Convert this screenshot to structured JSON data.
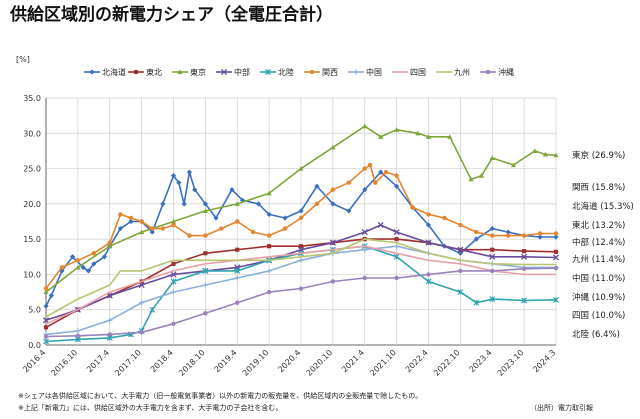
{
  "chart_data": {
    "type": "line",
    "title": "供給区域別の新電力シェア（全電圧合計）",
    "ylabel": "[%]",
    "ylim": [
      0,
      35
    ],
    "yticks": [
      "0.0",
      "5.0",
      "10.0",
      "15.0",
      "20.0",
      "25.0",
      "30.0",
      "35.0"
    ],
    "x_tick_labels": [
      "2016.4",
      "2016.10",
      "2017.4",
      "2017.10",
      "2018.4",
      "2018.10",
      "2019.4",
      "2019.10",
      "2020.4",
      "2020.10",
      "2021.4",
      "2021.10",
      "2022.4",
      "2022.10",
      "2023.4",
      "2023.10",
      "2024.3"
    ],
    "grid": true,
    "legend_position": "top",
    "series": [
      {
        "name": "北海道",
        "color": "#3a6fc0",
        "marker": "diamond",
        "end_label": "北海道 (15.3%)",
        "x": [
          0,
          1,
          3,
          5,
          7,
          8,
          9,
          11,
          12,
          14,
          16,
          18,
          20,
          22,
          24,
          25,
          26,
          27,
          28,
          30,
          32,
          35,
          37,
          40,
          42,
          45,
          48,
          51,
          54,
          57,
          60,
          63,
          66,
          69,
          72,
          75,
          78,
          81,
          84,
          87,
          90,
          93,
          96
        ],
        "y": [
          5.5,
          7,
          10.5,
          12.5,
          11,
          10.5,
          11.5,
          12.5,
          14,
          16.5,
          17.5,
          17.5,
          16,
          20,
          24,
          23,
          20,
          24.5,
          22,
          20,
          18,
          22,
          20.5,
          20,
          18.5,
          18,
          19,
          22.5,
          20,
          19,
          22,
          24.5,
          22.5,
          19.5,
          17,
          14,
          13,
          15,
          16.5,
          16,
          15.5,
          15.3,
          15.3
        ]
      },
      {
        "name": "東北",
        "color": "#a03030",
        "marker": "square",
        "end_label": "東北 (13.2%)",
        "x": [
          0,
          6,
          12,
          18,
          24,
          30,
          36,
          42,
          48,
          54,
          60,
          66,
          72,
          78,
          84,
          90,
          96
        ],
        "y": [
          2.5,
          5,
          7,
          9,
          11.5,
          13,
          13.5,
          14,
          14,
          14.5,
          15,
          15,
          14.5,
          13.5,
          13.5,
          13.3,
          13.2
        ]
      },
      {
        "name": "東京",
        "color": "#7da63a",
        "marker": "triangle",
        "end_label": "東京 (26.9%)",
        "x": [
          0,
          6,
          12,
          18,
          24,
          30,
          36,
          42,
          48,
          54,
          60,
          63,
          66,
          70,
          72,
          76,
          80,
          82,
          84,
          88,
          92,
          94,
          96
        ],
        "y": [
          7.5,
          11,
          14,
          16,
          17.5,
          19,
          20,
          21.5,
          25,
          28,
          31,
          29.5,
          30.5,
          30,
          29.5,
          29.5,
          23.5,
          24,
          26.5,
          25.5,
          27.5,
          27,
          26.9
        ]
      },
      {
        "name": "中部",
        "color": "#6a4c9c",
        "marker": "x",
        "end_label": "中部 (12.4%)",
        "x": [
          0,
          6,
          12,
          18,
          24,
          30,
          36,
          42,
          48,
          54,
          60,
          63,
          66,
          72,
          78,
          84,
          90,
          96
        ],
        "y": [
          3.5,
          5,
          7,
          8.5,
          10,
          10.5,
          11,
          12,
          13.5,
          14.5,
          16,
          17,
          16,
          14.5,
          13.5,
          12.5,
          12.5,
          12.4
        ]
      },
      {
        "name": "北陸",
        "color": "#2fa3b0",
        "marker": "star",
        "end_label": "北陸 (6.4%)",
        "x": [
          0,
          6,
          12,
          16,
          18,
          20,
          24,
          30,
          36,
          42,
          48,
          54,
          60,
          66,
          72,
          78,
          81,
          84,
          90,
          96
        ],
        "y": [
          0.5,
          0.8,
          1,
          1.5,
          2,
          5,
          9,
          10.5,
          10.5,
          12,
          13,
          13.5,
          14,
          12.5,
          9,
          7.5,
          6,
          6.5,
          6.3,
          6.4
        ]
      },
      {
        "name": "関西",
        "color": "#e8842c",
        "marker": "circle",
        "end_label": "関西 (15.8%)",
        "x": [
          0,
          3,
          6,
          9,
          12,
          14,
          16,
          18,
          20,
          22,
          24,
          27,
          30,
          33,
          36,
          39,
          42,
          45,
          48,
          51,
          54,
          57,
          60,
          61,
          62,
          64,
          66,
          69,
          72,
          75,
          78,
          81,
          84,
          87,
          90,
          93,
          96
        ],
        "y": [
          8,
          11,
          12,
          13,
          14.5,
          18.5,
          18,
          17.5,
          16.5,
          16.5,
          17,
          15.5,
          15.5,
          16.5,
          17.5,
          16,
          15.5,
          16.5,
          18,
          20,
          22,
          23,
          25,
          25.5,
          23,
          24.5,
          24,
          19.5,
          18.5,
          18,
          17,
          16,
          15.5,
          15.5,
          15.5,
          15.8,
          15.8
        ]
      },
      {
        "name": "中国",
        "color": "#8aafd8",
        "marker": "plus",
        "end_label": "中国 (11.0%)",
        "x": [
          0,
          6,
          12,
          18,
          24,
          30,
          36,
          42,
          48,
          54,
          60,
          66,
          72,
          78,
          84,
          90,
          96
        ],
        "y": [
          1.5,
          2,
          3.5,
          6,
          7.5,
          8.5,
          9.5,
          10.5,
          12,
          13,
          13.5,
          14,
          13,
          12,
          11.5,
          11,
          11
        ]
      },
      {
        "name": "四国",
        "color": "#e8a0a8",
        "marker": "none",
        "end_label": "四国 (10.0%)",
        "x": [
          0,
          6,
          12,
          18,
          24,
          30,
          36,
          42,
          48,
          54,
          60,
          66,
          72,
          78,
          84,
          90,
          96
        ],
        "y": [
          3,
          5,
          7.5,
          9,
          10.5,
          11.5,
          12,
          12.5,
          13,
          13.5,
          14,
          13,
          12,
          11.5,
          10.5,
          10,
          10
        ]
      },
      {
        "name": "九州",
        "color": "#b8c470",
        "marker": "none",
        "end_label": "九州 (11.4%)",
        "x": [
          0,
          6,
          12,
          14,
          18,
          24,
          30,
          36,
          42,
          48,
          54,
          60,
          66,
          72,
          78,
          84,
          90,
          96
        ],
        "y": [
          4,
          6.5,
          8.5,
          10.5,
          10.5,
          12,
          12,
          12,
          12,
          12.5,
          13,
          15,
          14.5,
          13,
          12,
          11.5,
          11.4,
          11.4
        ]
      },
      {
        "name": "沖縄",
        "color": "#9a82bd",
        "marker": "circle",
        "end_label": "沖縄 (10.9%)",
        "x": [
          0,
          6,
          12,
          18,
          24,
          30,
          36,
          42,
          48,
          54,
          60,
          66,
          72,
          78,
          84,
          90,
          96
        ],
        "y": [
          1.2,
          1.3,
          1.5,
          1.8,
          3,
          4.5,
          6,
          7.5,
          8,
          9,
          9.5,
          9.5,
          10,
          10.5,
          10.5,
          10.8,
          10.9
        ]
      }
    ]
  },
  "notes": {
    "line1": "※シェアは各供給区域において、大手電力（旧一般電気事業者）以外の新電力の販売量を、供給区域内の全販売量で除したもの。",
    "line2": "※上記「新電力」には、供給区域外の大手電力を含まず、大手電力の子会社を含む。",
    "source": "（出所）電力取引報"
  }
}
